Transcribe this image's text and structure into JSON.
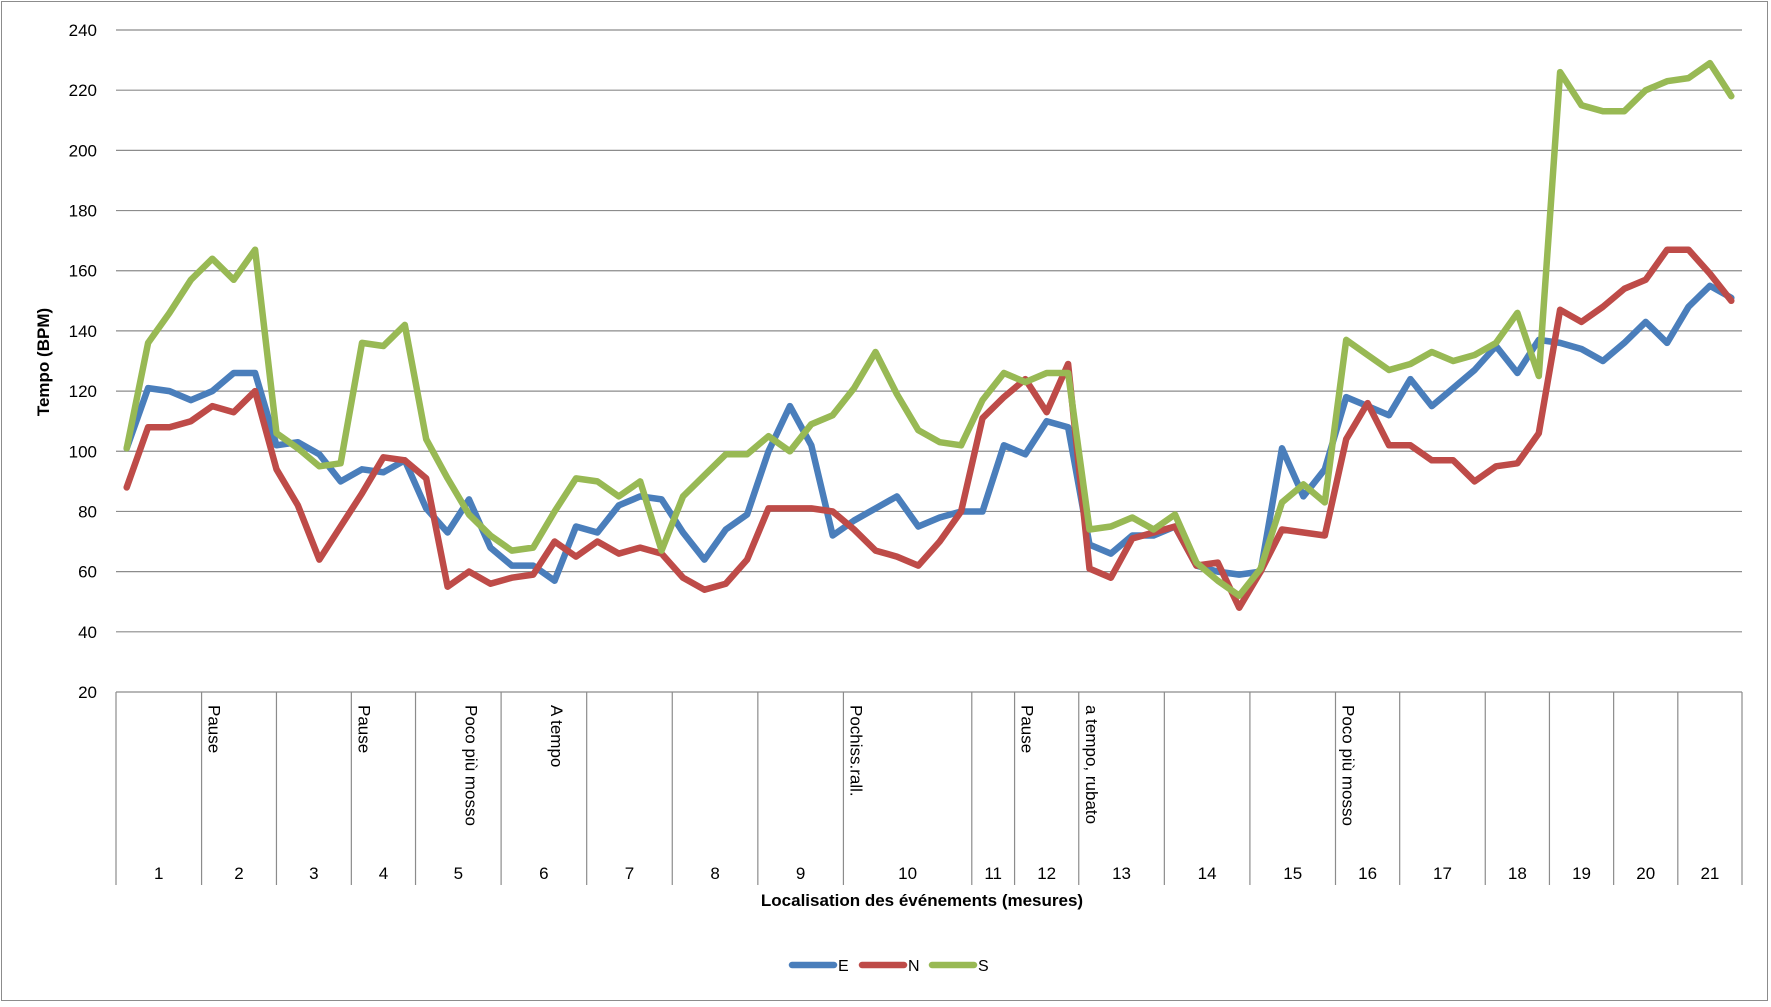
{
  "chart_data": {
    "type": "line",
    "title": "",
    "xlabel": "Localisation des événements (mesures)",
    "ylabel": "Tempo (BPM)",
    "ylim": [
      20,
      240
    ],
    "yticks": [
      20,
      40,
      60,
      80,
      100,
      120,
      140,
      160,
      180,
      200,
      220,
      240
    ],
    "grid": true,
    "legend_position": "bottom",
    "measures": [
      {
        "label": "1",
        "start": 0,
        "end": 4
      },
      {
        "label": "2",
        "start": 4,
        "end": 7.5
      },
      {
        "label": "3",
        "start": 7.5,
        "end": 11
      },
      {
        "label": "4",
        "start": 11,
        "end": 14
      },
      {
        "label": "5",
        "start": 14,
        "end": 18
      },
      {
        "label": "6",
        "start": 18,
        "end": 22
      },
      {
        "label": "7",
        "start": 22,
        "end": 26
      },
      {
        "label": "8",
        "start": 26,
        "end": 30
      },
      {
        "label": "9",
        "start": 30,
        "end": 34
      },
      {
        "label": "10",
        "start": 34,
        "end": 40
      },
      {
        "label": "11",
        "start": 40,
        "end": 42
      },
      {
        "label": "12",
        "start": 42,
        "end": 45
      },
      {
        "label": "13",
        "start": 45,
        "end": 49
      },
      {
        "label": "14",
        "start": 49,
        "end": 53
      },
      {
        "label": "15",
        "start": 53,
        "end": 57
      },
      {
        "label": "16",
        "start": 57,
        "end": 60
      },
      {
        "label": "17",
        "start": 60,
        "end": 64
      },
      {
        "label": "18",
        "start": 64,
        "end": 67
      },
      {
        "label": "19",
        "start": 67,
        "end": 70
      },
      {
        "label": "20",
        "start": 70,
        "end": 73
      },
      {
        "label": "21",
        "start": 73,
        "end": 76
      }
    ],
    "annotations": [
      {
        "text": "Pause",
        "at": 4
      },
      {
        "text": "Pause",
        "at": 11
      },
      {
        "text": "Poco più mosso",
        "at": 16
      },
      {
        "text": "A tempo",
        "at": 20
      },
      {
        "text": "Pochiss.rall.",
        "at": 34
      },
      {
        "text": "Pause",
        "at": 42
      },
      {
        "text": "a tempo, rubato",
        "at": 45
      },
      {
        "text": "Poco più mosso",
        "at": 57
      }
    ],
    "x_count": 76,
    "series": [
      {
        "name": "E",
        "color": "#4a7ebb",
        "values": [
          101,
          121,
          120,
          117,
          120,
          126,
          126,
          102,
          103,
          99,
          90,
          94,
          93,
          97,
          81,
          73,
          84,
          68,
          62,
          62,
          57,
          75,
          73,
          82,
          85,
          84,
          73,
          64,
          74,
          79,
          100,
          115,
          102,
          72,
          77,
          81,
          85,
          75,
          78,
          80,
          80,
          102,
          99,
          110,
          108,
          69,
          66,
          72,
          72,
          75,
          62,
          60,
          59,
          60,
          101,
          85,
          94,
          118,
          115,
          112,
          124,
          115,
          121,
          127,
          135,
          126,
          137,
          136,
          134,
          130,
          136,
          143,
          136,
          148,
          155,
          151
        ]
      },
      {
        "name": "N",
        "color": "#be4b48",
        "values": [
          88,
          108,
          108,
          110,
          115,
          113,
          120,
          94,
          82,
          64,
          75,
          86,
          98,
          97,
          91,
          55,
          60,
          56,
          58,
          59,
          70,
          65,
          70,
          66,
          68,
          66,
          58,
          54,
          56,
          64,
          81,
          81,
          81,
          80,
          74,
          67,
          65,
          62,
          70,
          80,
          111,
          118,
          124,
          113,
          129,
          61,
          58,
          71,
          73,
          75,
          62,
          63,
          48,
          60,
          74,
          73,
          72,
          104,
          116,
          102,
          102,
          97,
          97,
          90,
          95,
          96,
          106,
          147,
          143,
          148,
          154,
          157,
          167,
          167,
          159,
          150
        ]
      },
      {
        "name": "S",
        "color": "#98b954",
        "values": [
          101,
          136,
          146,
          157,
          164,
          157,
          167,
          106,
          101,
          95,
          96,
          136,
          135,
          142,
          104,
          91,
          79,
          72,
          67,
          68,
          80,
          91,
          90,
          85,
          90,
          67,
          85,
          92,
          99,
          99,
          105,
          100,
          109,
          112,
          121,
          133,
          119,
          107,
          103,
          102,
          117,
          126,
          123,
          126,
          126,
          74,
          75,
          78,
          74,
          79,
          63,
          57,
          52,
          61,
          83,
          89,
          83,
          137,
          132,
          127,
          129,
          133,
          130,
          132,
          136,
          146,
          125,
          226,
          215,
          213,
          213,
          220,
          223,
          224,
          229,
          218
        ]
      }
    ]
  }
}
